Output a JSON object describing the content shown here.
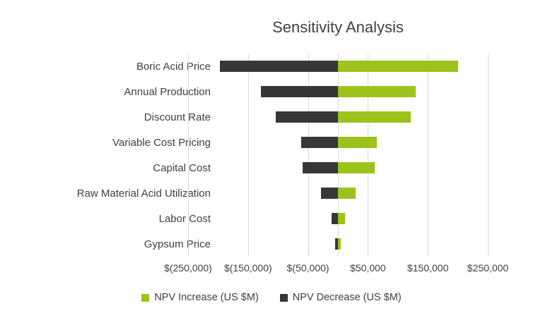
{
  "chart_data": {
    "type": "bar",
    "orientation": "horizontal",
    "variant": "tornado",
    "title": "Sensitivity Analysis",
    "categories": [
      "Boric Acid Price",
      "Annual Production",
      "Discount Rate",
      "Variable Cost Pricing",
      "Capital Cost",
      "Raw Material Acid Utilization",
      "Labor Cost",
      "Gypsum Price"
    ],
    "series": [
      {
        "name": "NPV Increase (US $M)",
        "color": "#9cc31c",
        "values": [
          200000,
          130000,
          121000,
          65000,
          61000,
          29000,
          12000,
          5000
        ]
      },
      {
        "name": "NPV Decrease (US $M)",
        "color": "#373737",
        "values": [
          -197000,
          -129000,
          -104000,
          -61000,
          -59000,
          -28000,
          -11000,
          -5000
        ]
      }
    ],
    "x_ticks": [
      {
        "value": -250000,
        "label": "$(250,000)"
      },
      {
        "value": -150000,
        "label": "$(150,000)"
      },
      {
        "value": -50000,
        "label": "$(50,000)"
      },
      {
        "value": 50000,
        "label": "$50,000"
      },
      {
        "value": 150000,
        "label": "$150,000"
      },
      {
        "value": 250000,
        "label": "$250,000"
      }
    ],
    "xlim": [
      -250000,
      250000
    ],
    "grid": "vertical",
    "legend_position": "bottom",
    "style": {
      "grid_color": "#d9d9d9",
      "text_color": "#404040",
      "background": "#ffffff"
    }
  }
}
